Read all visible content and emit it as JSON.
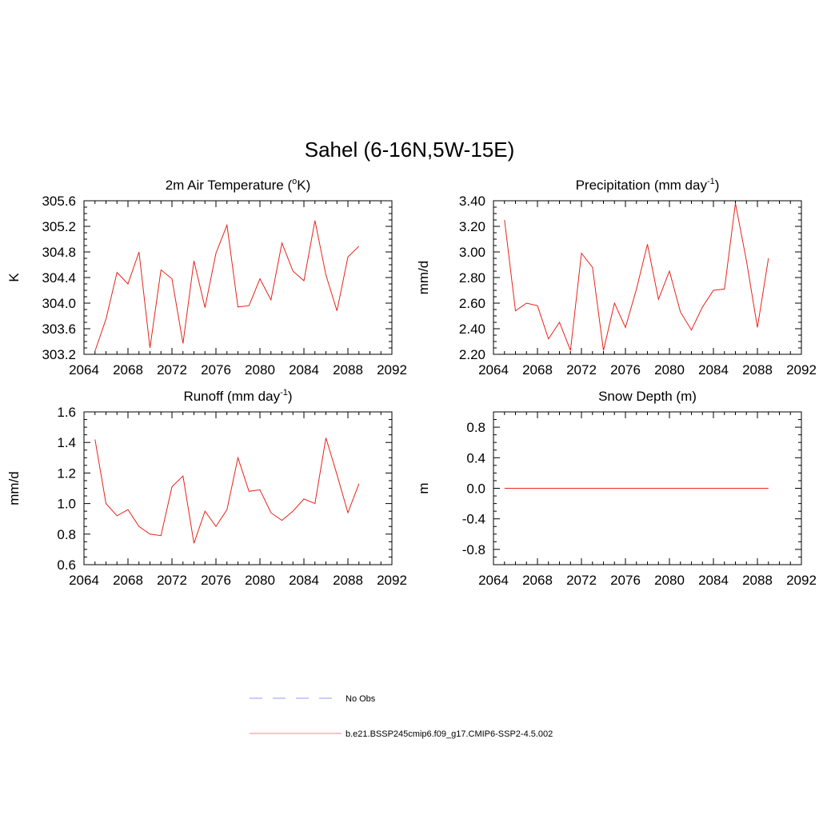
{
  "figure": {
    "title": "Sahel (6-16N,5W-15E)"
  },
  "chart_data": [
    {
      "type": "line",
      "title_main": "2m Air Temperature (",
      "title_sup": "o",
      "title_after": "K)",
      "ylabel": "K",
      "xlim": [
        2064,
        2092
      ],
      "ylim": [
        303.2,
        305.6
      ],
      "xticks": [
        "2064",
        "2068",
        "2072",
        "2076",
        "2080",
        "2084",
        "2088",
        "2092"
      ],
      "yticks": [
        "303.2",
        "303.6",
        "304.0",
        "304.4",
        "304.8",
        "305.2",
        "305.6"
      ],
      "series": [
        {
          "color": "#e8231a",
          "x": [
            2065,
            2066,
            2067,
            2068,
            2069,
            2070,
            2071,
            2072,
            2073,
            2074,
            2075,
            2076,
            2077,
            2078,
            2079,
            2080,
            2081,
            2082,
            2083,
            2084,
            2085,
            2086,
            2087,
            2088,
            2089
          ],
          "values": [
            303.25,
            303.75,
            304.48,
            304.3,
            304.8,
            303.3,
            304.52,
            304.38,
            303.37,
            304.66,
            303.93,
            304.78,
            305.22,
            303.94,
            303.96,
            304.38,
            304.05,
            304.94,
            304.5,
            304.35,
            305.29,
            304.44,
            303.88,
            304.72,
            304.89
          ]
        }
      ]
    },
    {
      "type": "line",
      "title_main": "Precipitation (mm day",
      "title_sup": "-1",
      "title_after": ")",
      "ylabel": "mm/d",
      "xlim": [
        2064,
        2092
      ],
      "ylim": [
        2.2,
        3.4
      ],
      "xticks": [
        "2064",
        "2068",
        "2072",
        "2076",
        "2080",
        "2084",
        "2088",
        "2092"
      ],
      "yticks": [
        "2.20",
        "2.40",
        "2.60",
        "2.80",
        "3.00",
        "3.20",
        "3.40"
      ],
      "series": [
        {
          "color": "#e8231a",
          "x": [
            2065,
            2066,
            2067,
            2068,
            2069,
            2070,
            2071,
            2072,
            2073,
            2074,
            2075,
            2076,
            2077,
            2078,
            2079,
            2080,
            2081,
            2082,
            2083,
            2084,
            2085,
            2086,
            2087,
            2088,
            2089
          ],
          "values": [
            3.25,
            2.54,
            2.6,
            2.58,
            2.32,
            2.45,
            2.23,
            2.99,
            2.88,
            2.23,
            2.6,
            2.41,
            2.71,
            3.06,
            2.63,
            2.85,
            2.53,
            2.39,
            2.57,
            2.7,
            2.71,
            3.38,
            2.93,
            2.41,
            2.95
          ]
        }
      ]
    },
    {
      "type": "line",
      "title_main": "Runoff (mm day",
      "title_sup": "-1",
      "title_after": ")",
      "ylabel": "mm/d",
      "xlim": [
        2064,
        2092
      ],
      "ylim": [
        0.6,
        1.6
      ],
      "xticks": [
        "2064",
        "2068",
        "2072",
        "2076",
        "2080",
        "2084",
        "2088",
        "2092"
      ],
      "yticks": [
        "0.6",
        "0.8",
        "1.0",
        "1.2",
        "1.4",
        "1.6"
      ],
      "series": [
        {
          "color": "#e8231a",
          "x": [
            2065,
            2066,
            2067,
            2068,
            2069,
            2070,
            2071,
            2072,
            2073,
            2074,
            2075,
            2076,
            2077,
            2078,
            2079,
            2080,
            2081,
            2082,
            2083,
            2084,
            2085,
            2086,
            2087,
            2088,
            2089
          ],
          "values": [
            1.42,
            1.0,
            0.92,
            0.96,
            0.85,
            0.8,
            0.79,
            1.11,
            1.18,
            0.74,
            0.95,
            0.85,
            0.96,
            1.3,
            1.08,
            1.09,
            0.94,
            0.89,
            0.95,
            1.03,
            1.0,
            1.43,
            1.19,
            0.94,
            1.13
          ]
        }
      ]
    },
    {
      "type": "line",
      "title_main": "Snow Depth (m)",
      "title_sup": "",
      "title_after": "",
      "ylabel": "m",
      "xlim": [
        2064,
        2092
      ],
      "ylim": [
        -1.0,
        1.0
      ],
      "xticks": [
        "2064",
        "2068",
        "2072",
        "2076",
        "2080",
        "2084",
        "2088",
        "2092"
      ],
      "yticks": [
        "-0.8",
        "-0.4",
        "0.0",
        "0.4",
        "0.8"
      ],
      "series": [
        {
          "color": "#e8231a",
          "x": [
            2065,
            2066,
            2067,
            2068,
            2069,
            2070,
            2071,
            2072,
            2073,
            2074,
            2075,
            2076,
            2077,
            2078,
            2079,
            2080,
            2081,
            2082,
            2083,
            2084,
            2085,
            2086,
            2087,
            2088,
            2089
          ],
          "values": [
            0,
            0,
            0,
            0,
            0,
            0,
            0,
            0,
            0,
            0,
            0,
            0,
            0,
            0,
            0,
            0,
            0,
            0,
            0,
            0,
            0,
            0,
            0,
            0,
            0
          ]
        }
      ]
    }
  ],
  "legend": [
    {
      "label": "No Obs",
      "color": "#9a9af0",
      "dashed": true
    },
    {
      "label": "b.e21.BSSP245cmip6.f09_g17.CMIP6-SSP2-4.5.002",
      "color": "#f08a8a",
      "dashed": false
    }
  ]
}
